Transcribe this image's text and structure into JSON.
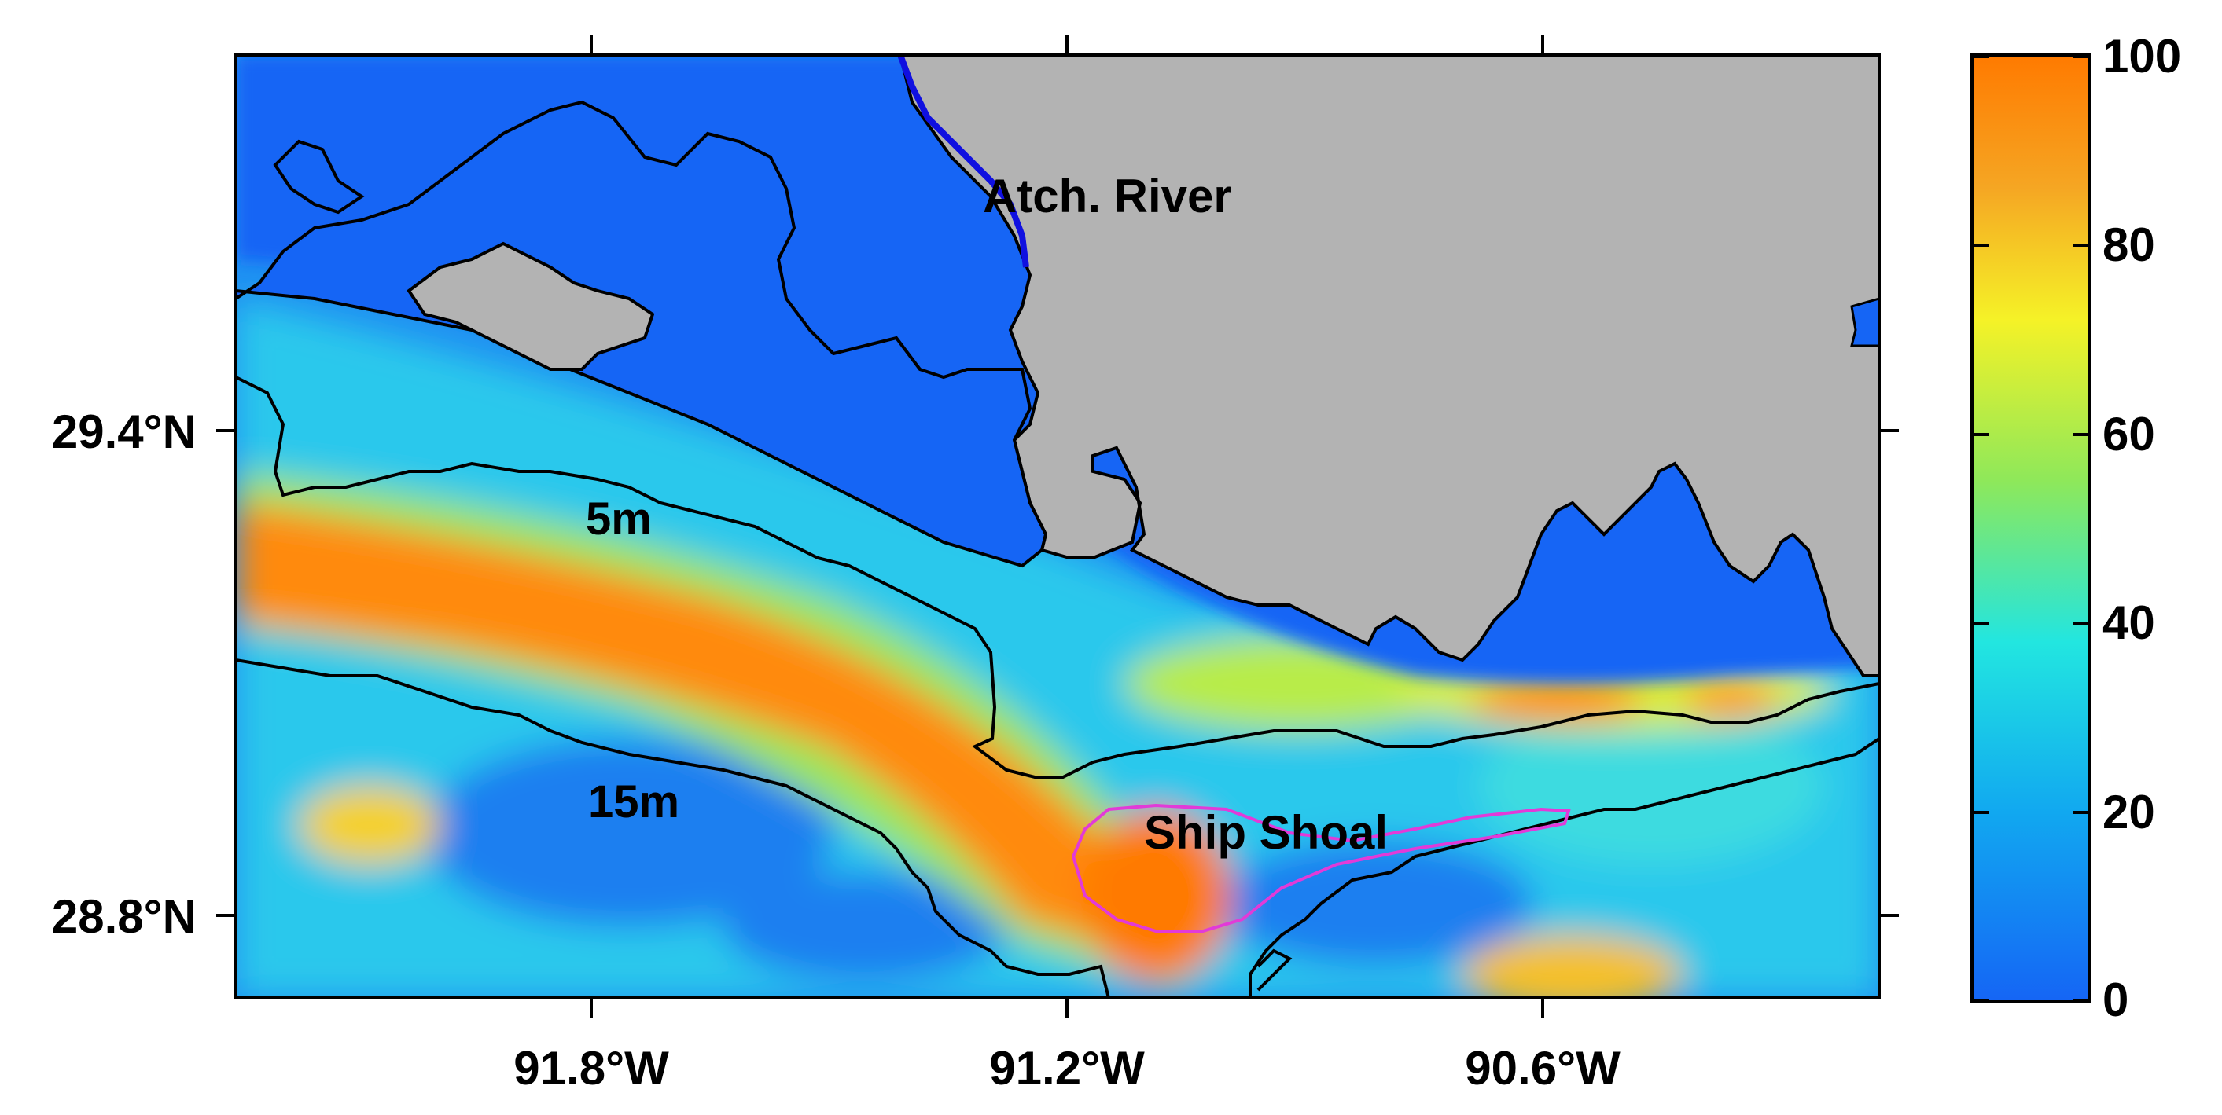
{
  "map": {
    "labels": {
      "river": "Atch. River",
      "contour_5m": "5m",
      "contour_15m": "15m",
      "shoal": "Ship Shoal"
    },
    "longitude_ticks": [
      "91.8°W",
      "91.2°W",
      "90.6°W"
    ],
    "latitude_ticks": [
      "29.4°N",
      "28.8°N"
    ]
  },
  "colorbar": {
    "ticks": [
      "100",
      "80",
      "60",
      "40",
      "20",
      "0"
    ],
    "min": 0,
    "max": 100,
    "colors": [
      "#1565f5",
      "#11a8f0",
      "#22e6e0",
      "#8ee85a",
      "#f5f227",
      "#f5a623",
      "#ff7a00"
    ]
  },
  "colors": {
    "land": "#b3b3b3",
    "water_low": "#1565f5",
    "river": "#1010e0",
    "shoal_outline": "#e23ad8",
    "coastline": "#000000"
  }
}
